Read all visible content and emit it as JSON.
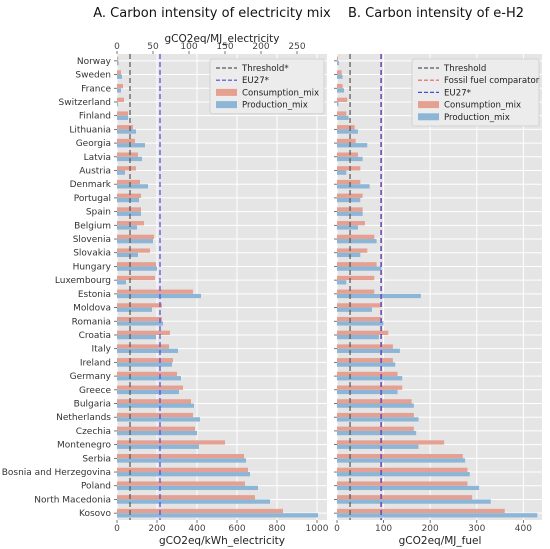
{
  "chart_data": [
    {
      "type": "bar",
      "orientation": "horizontal",
      "title": "A. Carbon intensity of electricity mix",
      "xlabel": "gCO2eq/kWh_electricity",
      "top_xlabel": "gCO2eq/MJ_electricity",
      "xlim": [
        0,
        1050
      ],
      "xticks": [
        0,
        200,
        400,
        600,
        800,
        1000
      ],
      "top_xticks": [
        0,
        50,
        100,
        150,
        200,
        250
      ],
      "grid": true,
      "legend": "top-right",
      "threshold": 65,
      "eu27": 215,
      "reference_lines": [
        {
          "name": "Threshold*",
          "value": 65,
          "color": "#555555"
        },
        {
          "name": "EU27*",
          "value": 215,
          "color": "#4b4bd9"
        }
      ],
      "series": [
        {
          "name": "Consumption_mix",
          "color": "#e5a092",
          "values": [
            6,
            20,
            30,
            35,
            55,
            80,
            90,
            105,
            95,
            115,
            120,
            120,
            135,
            185,
            165,
            195,
            190,
            380,
            225,
            225,
            265,
            260,
            280,
            300,
            330,
            370,
            380,
            390,
            540,
            635,
            655,
            640,
            690,
            830
          ]
        },
        {
          "name": "Production_mix",
          "color": "#8db6d6",
          "values": [
            8,
            25,
            20,
            5,
            55,
            95,
            140,
            125,
            40,
            155,
            110,
            120,
            100,
            180,
            105,
            200,
            45,
            420,
            175,
            230,
            195,
            305,
            275,
            320,
            310,
            385,
            415,
            400,
            410,
            645,
            665,
            705,
            765,
            1005
          ]
        }
      ]
    },
    {
      "type": "bar",
      "orientation": "horizontal",
      "title": "B. Carbon intensity of e-H2",
      "xlabel": "gCO2eq/MJ_fuel",
      "xlim": [
        0,
        440
      ],
      "xticks": [
        0,
        100,
        200,
        300,
        400
      ],
      "grid": true,
      "legend": "top-right",
      "threshold": 28,
      "fossil": 94,
      "eu27": 95,
      "reference_lines": [
        {
          "name": "Threshold",
          "value": 28,
          "color": "#555555"
        },
        {
          "name": "Fossil fuel comparator",
          "value": 94,
          "color": "#e06060"
        },
        {
          "name": "EU27*",
          "value": 95,
          "color": "#4b4bd9"
        }
      ],
      "series": [
        {
          "name": "Consumption_mix",
          "color": "#e5a092",
          "values": [
            2,
            10,
            12,
            22,
            20,
            38,
            40,
            45,
            50,
            50,
            55,
            55,
            60,
            80,
            65,
            85,
            80,
            80,
            95,
            95,
            110,
            120,
            120,
            130,
            140,
            160,
            165,
            165,
            230,
            270,
            280,
            280,
            290,
            360
          ]
        },
        {
          "name": "Production_mix",
          "color": "#8db6d6",
          "values": [
            4,
            12,
            15,
            3,
            25,
            45,
            65,
            55,
            20,
            70,
            50,
            55,
            45,
            85,
            50,
            95,
            20,
            180,
            75,
            100,
            90,
            135,
            125,
            140,
            130,
            165,
            175,
            170,
            175,
            275,
            285,
            305,
            330,
            430
          ]
        }
      ]
    }
  ],
  "categories": [
    "Norway",
    "Sweden",
    "France",
    "Switzerland",
    "Finland",
    "Lithuania",
    "Georgia",
    "Latvia",
    "Austria",
    "Denmark",
    "Portugal",
    "Spain",
    "Belgium",
    "Slovenia",
    "Slovakia",
    "Hungary",
    "Luxembourg",
    "Estonia",
    "Moldova",
    "Romania",
    "Croatia",
    "Italy",
    "Ireland",
    "Germany",
    "Greece",
    "Bulgaria",
    "Netherlands",
    "Czechia",
    "Montenegro",
    "Serbia",
    "Bosnia and Herzegovina",
    "Poland",
    "North Macedonia",
    "Kosovo"
  ]
}
